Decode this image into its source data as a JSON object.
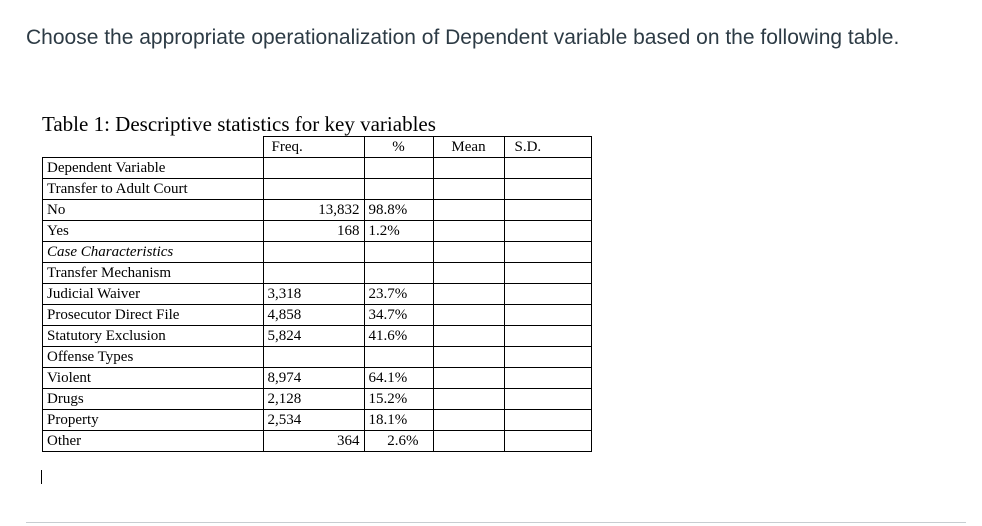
{
  "question": {
    "text": "Choose the appropriate operationalization of Dependent variable based on the following table."
  },
  "table": {
    "caption": "Table 1:  Descriptive statistics for key variables",
    "headers": {
      "freq": "Freq.",
      "pct": "%",
      "mean": "Mean",
      "sd": "S.D."
    },
    "rows": [
      {
        "label": "Dependent Variable",
        "freq": "",
        "pct": "",
        "mean": "",
        "sd": ""
      },
      {
        "label": "Transfer to Adult Court",
        "freq": "",
        "pct": "",
        "mean": "",
        "sd": ""
      },
      {
        "label": "No",
        "freq": "13,832",
        "pct": "98.8%",
        "mean": "",
        "sd": ""
      },
      {
        "label": "Yes",
        "freq": "168",
        "pct": "1.2%",
        "mean": "",
        "sd": ""
      },
      {
        "label": "Case Characteristics",
        "freq": "",
        "pct": "",
        "mean": "",
        "sd": ""
      },
      {
        "label": "Transfer Mechanism",
        "freq": "",
        "pct": "",
        "mean": "",
        "sd": ""
      },
      {
        "label": "Judicial Waiver",
        "freq": "3,318",
        "pct": "23.7%",
        "mean": "",
        "sd": ""
      },
      {
        "label": "Prosecutor Direct File",
        "freq": "4,858",
        "pct": "34.7%",
        "mean": "",
        "sd": ""
      },
      {
        "label": "Statutory Exclusion",
        "freq": "5,824",
        "pct": "41.6%",
        "mean": "",
        "sd": ""
      },
      {
        "label": "Offense Types",
        "freq": "",
        "pct": "",
        "mean": "",
        "sd": ""
      },
      {
        "label": "Violent",
        "freq": "8,974",
        "pct": "64.1%",
        "mean": "",
        "sd": ""
      },
      {
        "label": "Drugs",
        "freq": "2,128",
        "pct": "15.2%",
        "mean": "",
        "sd": ""
      },
      {
        "label": "Property",
        "freq": "2,534",
        "pct": "18.1%",
        "mean": "",
        "sd": ""
      },
      {
        "label": "Other",
        "freq": "364",
        "pct": "2.6%",
        "mean": "",
        "sd": ""
      }
    ]
  }
}
